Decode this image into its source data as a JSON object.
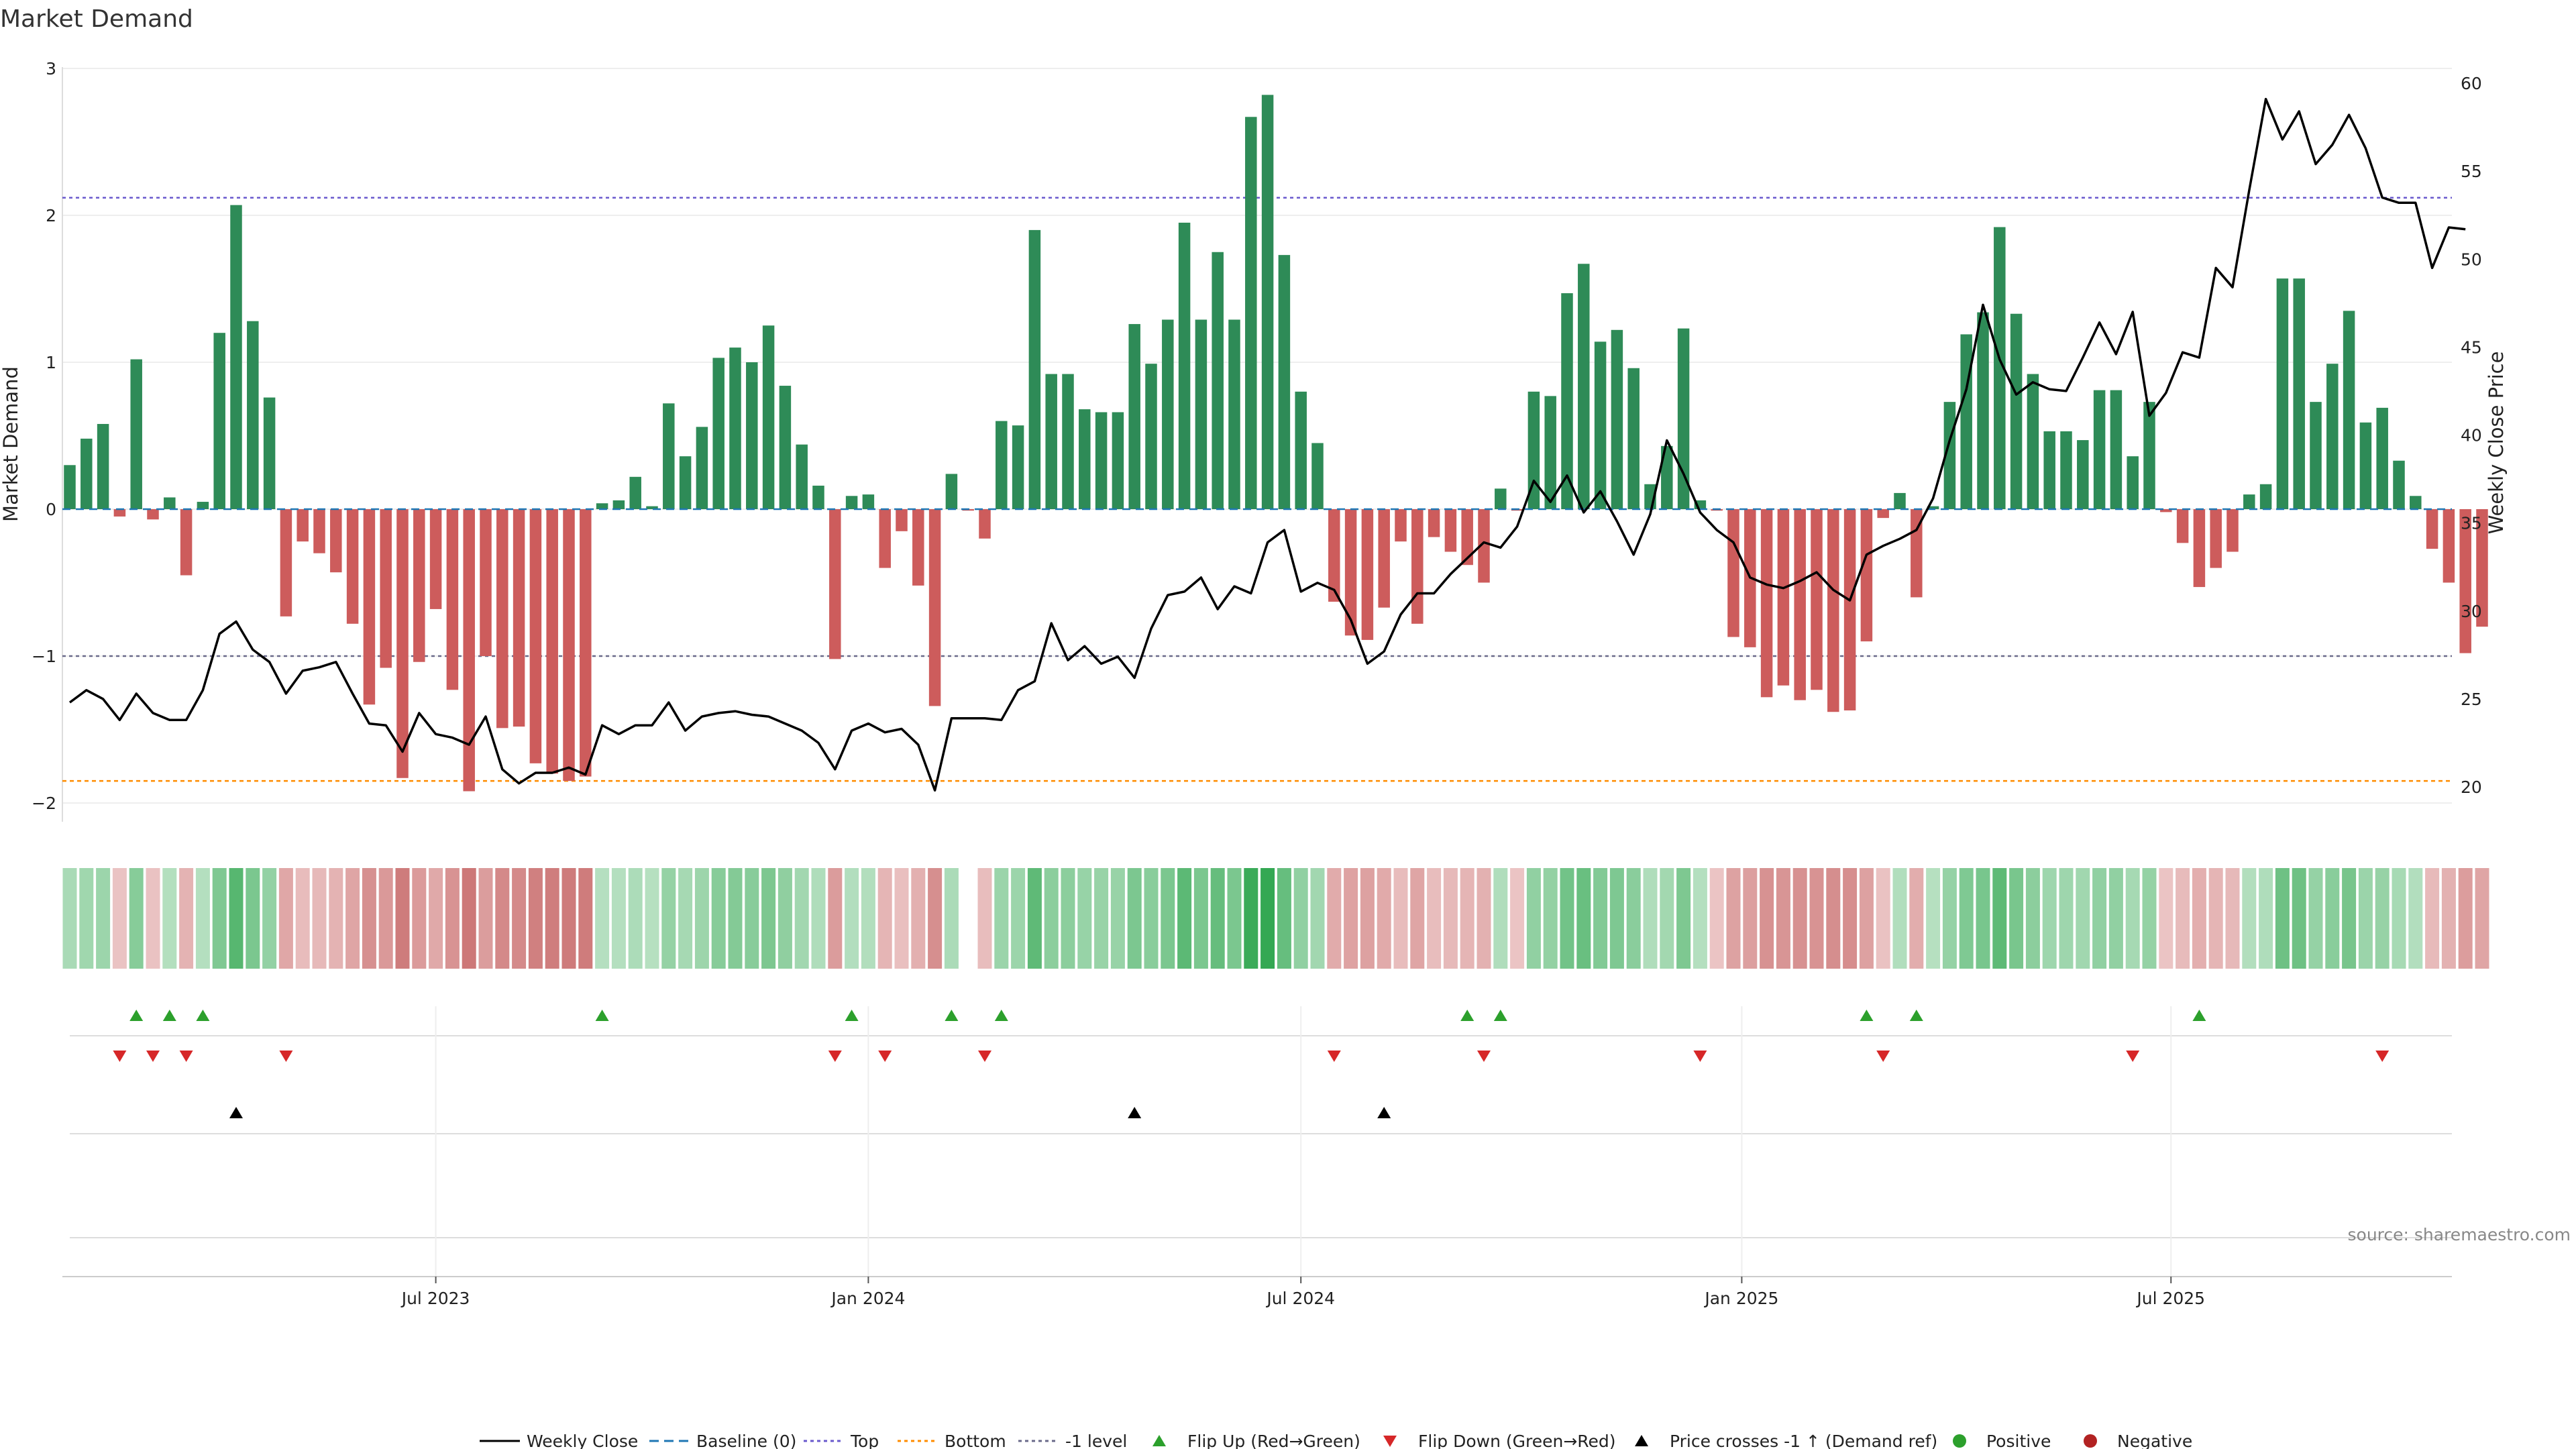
{
  "title": "Market Demand",
  "source": "source: sharemaestro.com",
  "colors": {
    "positive": "#2e8b57",
    "negative": "#cd5c5c",
    "price_line": "#000000",
    "baseline": "#1f77b4",
    "top_level": "#6a5acd",
    "bottom_level": "#ff8c00",
    "minus_one_level": "#6a6a8a",
    "flip_up": "#2ca02c",
    "flip_down": "#d62728",
    "cross_marker": "#000000",
    "dot_positive": "#2ca02c",
    "dot_negative": "#b22222"
  },
  "chart_data": {
    "type": "bar",
    "title": "Market Demand",
    "ylabel_left": "Market Demand",
    "ylabel_right": "Weekly Close Price",
    "ylim_left": [
      -2.2,
      3.0
    ],
    "ylim_right": [
      19,
      60.5
    ],
    "yticks_left": [
      {
        "v": 3,
        "label": "3"
      },
      {
        "v": 2,
        "label": "2"
      },
      {
        "v": 1,
        "label": "1"
      },
      {
        "v": 0,
        "label": "0"
      },
      {
        "v": -1,
        "label": "−1"
      },
      {
        "v": -2,
        "label": "−2"
      }
    ],
    "yticks_right": [
      {
        "v": 60,
        "label": "60"
      },
      {
        "v": 55,
        "label": "55"
      },
      {
        "v": 50,
        "label": "50"
      },
      {
        "v": 45,
        "label": "45"
      },
      {
        "v": 40,
        "label": "40"
      },
      {
        "v": 35,
        "label": "35"
      },
      {
        "v": 30,
        "label": "30"
      },
      {
        "v": 25,
        "label": "25"
      },
      {
        "v": 20,
        "label": "20"
      }
    ],
    "x_start": "2023-01-13",
    "x_step_weeks": 1,
    "xticks": [
      {
        "week": 22,
        "label": "Jul 2023"
      },
      {
        "week": 48,
        "label": "Jan 2024"
      },
      {
        "week": 74,
        "label": "Jul 2024"
      },
      {
        "week": 100.5,
        "label": "Jan 2025"
      },
      {
        "week": 126.3,
        "label": "Jul 2025"
      }
    ],
    "levels": {
      "top": 2.12,
      "bottom": -1.85,
      "minus_one": -1.0,
      "baseline": 0
    },
    "demand": [
      0.3,
      0.48,
      0.58,
      -0.05,
      1.02,
      -0.07,
      0.08,
      -0.45,
      0.05,
      1.2,
      2.07,
      1.28,
      0.76,
      -0.73,
      -0.22,
      -0.3,
      -0.43,
      -0.78,
      -1.33,
      -1.08,
      -1.83,
      -1.04,
      -0.68,
      -1.23,
      -1.92,
      -1.0,
      -1.49,
      -1.48,
      -1.73,
      -1.8,
      -1.85,
      -1.82,
      0.04,
      0.06,
      0.22,
      0.02,
      0.72,
      0.36,
      0.56,
      1.03,
      1.1,
      1.0,
      1.25,
      0.84,
      0.44,
      0.16,
      -1.02,
      0.09,
      0.1,
      -0.4,
      -0.15,
      -0.52,
      -1.34,
      0.24,
      -0.01,
      -0.2,
      0.6,
      0.57,
      1.9,
      0.92,
      0.92,
      0.68,
      0.66,
      0.66,
      1.26,
      0.99,
      1.29,
      1.95,
      1.29,
      1.75,
      1.29,
      2.67,
      2.82,
      1.73,
      0.8,
      0.45,
      -0.63,
      -0.86,
      -0.89,
      -0.67,
      -0.22,
      -0.78,
      -0.19,
      -0.29,
      -0.38,
      -0.5,
      0.14,
      -0.01,
      0.8,
      0.77,
      1.47,
      1.67,
      1.14,
      1.22,
      0.96,
      0.17,
      0.43,
      1.23,
      0.06,
      -0.01,
      -0.87,
      -0.94,
      -1.28,
      -1.2,
      -1.3,
      -1.23,
      -1.38,
      -1.37,
      -0.9,
      -0.06,
      0.11,
      -0.6,
      0.02,
      0.73,
      1.19,
      1.34,
      1.92,
      1.33,
      0.92,
      0.53,
      0.53,
      0.47,
      0.81,
      0.81,
      0.36,
      0.73,
      -0.02,
      -0.23,
      -0.53,
      -0.4,
      -0.29,
      0.1,
      0.17,
      1.57,
      1.57,
      0.73,
      0.99,
      1.35,
      0.59,
      0.69,
      0.33,
      0.09,
      -0.27,
      -0.5,
      -0.98,
      -0.8
    ],
    "weekly_close": [
      24.8,
      25.5,
      25.0,
      23.8,
      25.3,
      24.2,
      23.8,
      23.8,
      25.5,
      28.7,
      29.4,
      27.8,
      27.1,
      25.3,
      26.6,
      26.8,
      27.1,
      25.3,
      23.6,
      23.5,
      22.0,
      24.2,
      23.0,
      22.8,
      22.4,
      24.0,
      21.0,
      20.2,
      20.8,
      20.8,
      21.1,
      20.7,
      23.5,
      23.0,
      23.5,
      23.5,
      24.8,
      23.2,
      24.0,
      24.2,
      24.3,
      24.1,
      24.0,
      23.6,
      23.2,
      22.5,
      21.0,
      23.2,
      23.6,
      23.1,
      23.3,
      22.4,
      19.8,
      23.9,
      23.9,
      23.9,
      23.8,
      25.5,
      26.0,
      29.3,
      27.2,
      28.0,
      27.0,
      27.4,
      26.2,
      29.0,
      30.9,
      31.1,
      31.9,
      30.1,
      31.4,
      31.0,
      33.9,
      34.6,
      31.1,
      31.6,
      31.2,
      29.5,
      27.0,
      27.7,
      29.8,
      31.0,
      31.0,
      32.1,
      33.0,
      33.9,
      33.6,
      34.8,
      37.4,
      36.2,
      37.7,
      35.6,
      36.8,
      35.1,
      33.2,
      35.5,
      39.7,
      37.8,
      35.6,
      34.6,
      33.9,
      31.9,
      31.5,
      31.3,
      31.7,
      32.2,
      31.2,
      30.6,
      33.2,
      33.7,
      34.1,
      34.6,
      36.4,
      39.7,
      42.6,
      47.4,
      44.3,
      42.3,
      43.0,
      42.6,
      42.5,
      44.4,
      46.4,
      44.6,
      47.0,
      41.1,
      42.4,
      44.7,
      44.4,
      49.5,
      48.4,
      53.9,
      59.1,
      56.8,
      58.4,
      55.4,
      56.5,
      58.2,
      56.3,
      53.5,
      53.2,
      53.2,
      49.5,
      51.8,
      51.7
    ],
    "flip_up_weeks": [
      4,
      6,
      8,
      32,
      47,
      53,
      56,
      84,
      86,
      108,
      111,
      128
    ],
    "flip_down_weeks": [
      3,
      5,
      7,
      13,
      46,
      49,
      55,
      76,
      85,
      98,
      109,
      124,
      139
    ],
    "price_cross_weeks": [
      10,
      64,
      79
    ],
    "heat_gap_weeks": [
      54
    ]
  },
  "legend": [
    {
      "key": "weekly_close",
      "label": "Weekly Close",
      "symbol": "line-solid"
    },
    {
      "key": "baseline",
      "label": "Baseline (0)",
      "symbol": "line-dash"
    },
    {
      "key": "top",
      "label": "Top",
      "symbol": "line-dot"
    },
    {
      "key": "bottom",
      "label": "Bottom",
      "symbol": "line-dot"
    },
    {
      "key": "minus_one",
      "label": "-1 level",
      "symbol": "line-dot"
    },
    {
      "key": "flip_up",
      "label": "Flip Up (Red→Green)",
      "symbol": "triangle-up"
    },
    {
      "key": "flip_down",
      "label": "Flip Down (Green→Red)",
      "symbol": "triangle-down"
    },
    {
      "key": "price_cross",
      "label": "Price crosses -1 ↑ (Demand ref)",
      "symbol": "triangle-up"
    },
    {
      "key": "positive",
      "label": "Positive",
      "symbol": "dot"
    },
    {
      "key": "negative",
      "label": "Negative",
      "symbol": "dot"
    }
  ]
}
